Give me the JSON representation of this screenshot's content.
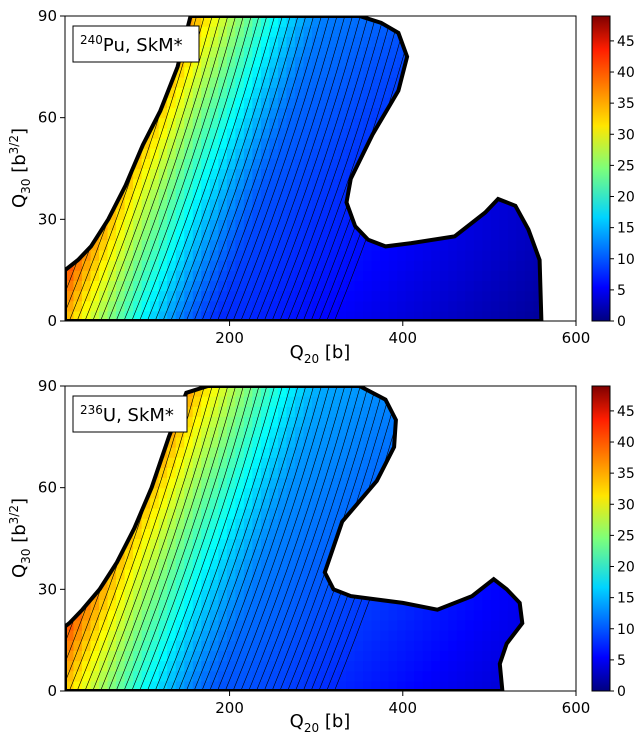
{
  "chart_data": [
    {
      "type": "heatmap",
      "label_sup": "240",
      "label_rest": "Pu, SkM*",
      "xlabel_main": "Q",
      "xlabel_sub": "20",
      "xlabel_unit": " [b]",
      "ylabel_main": "Q",
      "ylabel_sub": "30",
      "ylabel_unit_pre": " [b",
      "ylabel_unit_sup": "3/2",
      "ylabel_unit_post": "]",
      "xlim": [
        10,
        600
      ],
      "ylim": [
        0,
        90
      ],
      "x_ticks": [
        200,
        400,
        600
      ],
      "y_ticks": [
        0,
        30,
        60,
        90
      ],
      "colorbar_range": [
        0,
        49
      ],
      "colorbar_ticks": [
        0,
        5,
        10,
        15,
        20,
        25,
        30,
        35,
        40,
        45
      ],
      "colormap": "jet",
      "valley_base": 8,
      "ridge_peak": 44,
      "boundary": [
        [
          10,
          0
        ],
        [
          560,
          0
        ],
        [
          558,
          18
        ],
        [
          545,
          27
        ],
        [
          530,
          34
        ],
        [
          510,
          36
        ],
        [
          495,
          32
        ],
        [
          460,
          25
        ],
        [
          410,
          23
        ],
        [
          380,
          22
        ],
        [
          360,
          24
        ],
        [
          345,
          28
        ],
        [
          335,
          35
        ],
        [
          340,
          42
        ],
        [
          365,
          55
        ],
        [
          395,
          68
        ],
        [
          405,
          78
        ],
        [
          395,
          85
        ],
        [
          375,
          88
        ],
        [
          350,
          90
        ],
        [
          255,
          90
        ],
        [
          215,
          90
        ],
        [
          175,
          90
        ],
        [
          155,
          90
        ],
        [
          140,
          75
        ],
        [
          120,
          62
        ],
        [
          100,
          52
        ],
        [
          80,
          40
        ],
        [
          60,
          30
        ],
        [
          40,
          22
        ],
        [
          25,
          18
        ],
        [
          10,
          15
        ]
      ]
    },
    {
      "type": "heatmap",
      "label_sup": "236",
      "label_rest": "U, SkM*",
      "xlabel_main": "Q",
      "xlabel_sub": "20",
      "xlabel_unit": " [b]",
      "ylabel_main": "Q",
      "ylabel_sub": "30",
      "ylabel_unit_pre": " [b",
      "ylabel_unit_sup": "3/2",
      "ylabel_unit_post": "]",
      "xlim": [
        10,
        600
      ],
      "ylim": [
        0,
        90
      ],
      "x_ticks": [
        200,
        400,
        600
      ],
      "y_ticks": [
        0,
        30,
        60,
        90
      ],
      "colorbar_range": [
        0,
        49
      ],
      "colorbar_ticks": [
        0,
        5,
        10,
        15,
        20,
        25,
        30,
        35,
        40,
        45
      ],
      "colormap": "jet",
      "valley_base": 10,
      "ridge_peak": 39,
      "boundary": [
        [
          10,
          0
        ],
        [
          515,
          0
        ],
        [
          512,
          8
        ],
        [
          520,
          14
        ],
        [
          538,
          20
        ],
        [
          535,
          26
        ],
        [
          520,
          30
        ],
        [
          505,
          33
        ],
        [
          480,
          28
        ],
        [
          440,
          24
        ],
        [
          400,
          26
        ],
        [
          370,
          27
        ],
        [
          340,
          28
        ],
        [
          320,
          30
        ],
        [
          310,
          35
        ],
        [
          330,
          50
        ],
        [
          370,
          62
        ],
        [
          390,
          72
        ],
        [
          392,
          80
        ],
        [
          380,
          86
        ],
        [
          350,
          90
        ],
        [
          200,
          90
        ],
        [
          175,
          90
        ],
        [
          150,
          88
        ],
        [
          130,
          75
        ],
        [
          110,
          60
        ],
        [
          90,
          48
        ],
        [
          70,
          38
        ],
        [
          50,
          30
        ],
        [
          30,
          24
        ],
        [
          15,
          20
        ],
        [
          10,
          19
        ]
      ]
    }
  ]
}
